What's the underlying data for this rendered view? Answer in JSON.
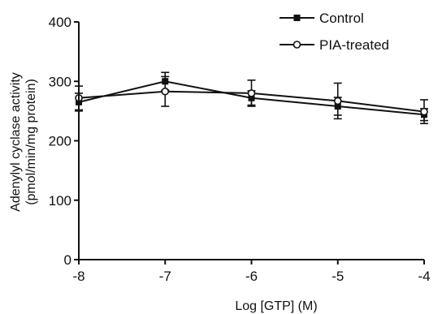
{
  "chart_data": {
    "type": "line",
    "xlabel": "Log [GTP] (M)",
    "ylabel": "Adenylyl cyclase activity",
    "ylabel_line2": "(pmol/min/mg protein)",
    "x": [
      -8,
      -7,
      -6,
      -5,
      -4
    ],
    "x_ticks": [
      -8,
      -7,
      -6,
      -5,
      -4
    ],
    "x_tick_labels": [
      "-8",
      "-7",
      "-6",
      "-5",
      "-4"
    ],
    "y_ticks": [
      0,
      100,
      200,
      300,
      400
    ],
    "y_tick_labels": [
      "0",
      "100",
      "200",
      "300",
      "400"
    ],
    "xlim": [
      -8,
      -4
    ],
    "ylim": [
      0,
      400
    ],
    "grid": false,
    "legend_position": "top-right",
    "series": [
      {
        "name": "Control",
        "marker": "filled-square",
        "color": "#111111",
        "values": [
          265,
          300,
          272,
          258,
          244
        ],
        "error": [
          15,
          15,
          12,
          15,
          10
        ]
      },
      {
        "name": "PIA-treated",
        "marker": "open-circle",
        "color": "#111111",
        "values": [
          272,
          283,
          280,
          267,
          249
        ],
        "error": [
          20,
          25,
          22,
          30,
          20
        ]
      }
    ]
  }
}
